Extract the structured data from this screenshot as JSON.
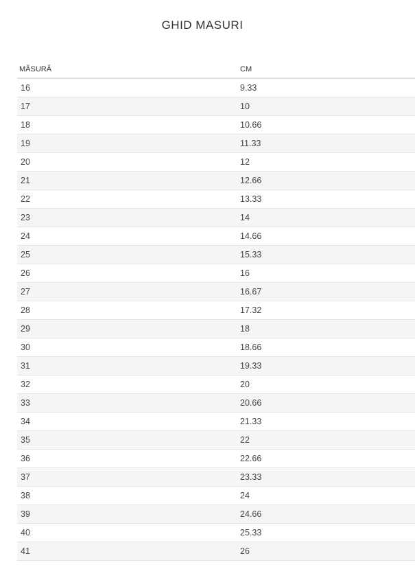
{
  "title": "GHID MASURI",
  "table": {
    "headers": [
      "MĂSURĂ",
      "CM"
    ],
    "rows": [
      [
        "16",
        "9.33"
      ],
      [
        "17",
        "10"
      ],
      [
        "18",
        "10.66"
      ],
      [
        "19",
        "11.33"
      ],
      [
        "20",
        "12"
      ],
      [
        "21",
        "12.66"
      ],
      [
        "22",
        "13.33"
      ],
      [
        "23",
        "14"
      ],
      [
        "24",
        "14.66"
      ],
      [
        "25",
        "15.33"
      ],
      [
        "26",
        "16"
      ],
      [
        "27",
        "16.67"
      ],
      [
        "28",
        "17.32"
      ],
      [
        "29",
        "18"
      ],
      [
        "30",
        "18.66"
      ],
      [
        "31",
        "19.33"
      ],
      [
        "32",
        "20"
      ],
      [
        "33",
        "20.66"
      ],
      [
        "34",
        "21.33"
      ],
      [
        "35",
        "22"
      ],
      [
        "36",
        "22.66"
      ],
      [
        "37",
        "23.33"
      ],
      [
        "38",
        "24"
      ],
      [
        "39",
        "24.66"
      ],
      [
        "40",
        "25.33"
      ],
      [
        "41",
        "26"
      ]
    ]
  },
  "colors": {
    "stripe": "#f5f5f5",
    "border": "#dddddd"
  }
}
